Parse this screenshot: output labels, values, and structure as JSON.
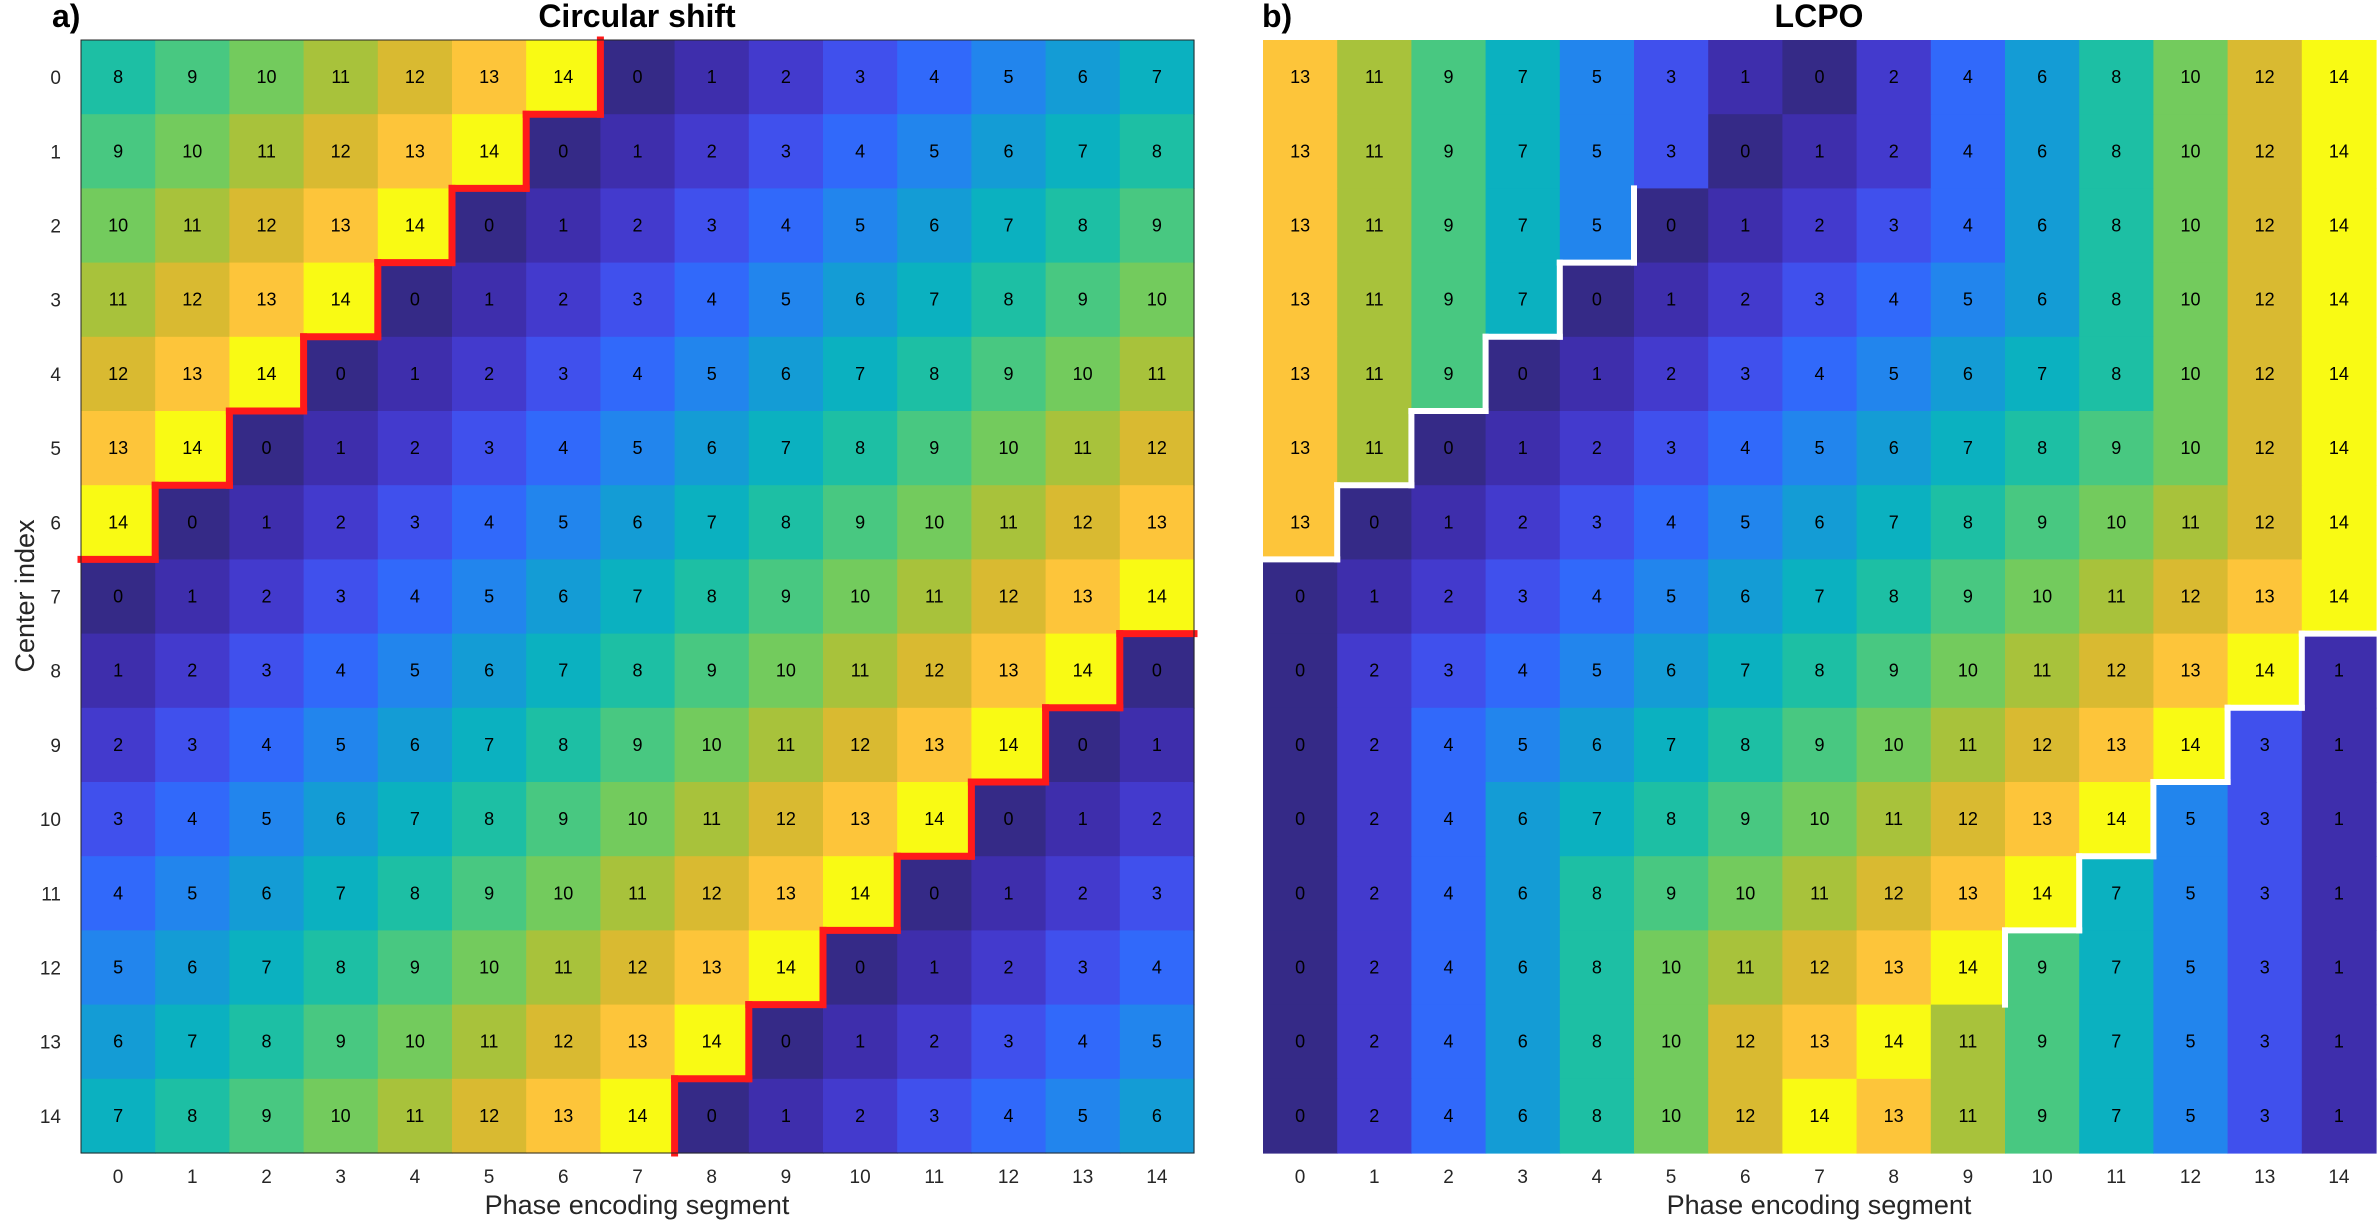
{
  "chart_data": [
    {
      "type": "heatmap",
      "panel_label": "a)",
      "title": "Circular shift",
      "xlabel": "Phase encoding segment",
      "ylabel": "Center index",
      "x_ticks": [
        "0",
        "1",
        "2",
        "3",
        "4",
        "5",
        "6",
        "7",
        "8",
        "9",
        "10",
        "11",
        "12",
        "13",
        "14"
      ],
      "y_ticks": [
        "0",
        "1",
        "2",
        "3",
        "4",
        "5",
        "6",
        "7",
        "8",
        "9",
        "10",
        "11",
        "12",
        "13",
        "14"
      ],
      "colormap": "parula",
      "value_range": [
        0,
        14
      ],
      "boundary_color": "#ff1a1a",
      "values": [
        [
          8,
          9,
          10,
          11,
          12,
          13,
          14,
          0,
          1,
          2,
          3,
          4,
          5,
          6,
          7
        ],
        [
          9,
          10,
          11,
          12,
          13,
          14,
          0,
          1,
          2,
          3,
          4,
          5,
          6,
          7,
          8
        ],
        [
          10,
          11,
          12,
          13,
          14,
          0,
          1,
          2,
          3,
          4,
          5,
          6,
          7,
          8,
          9
        ],
        [
          11,
          12,
          13,
          14,
          0,
          1,
          2,
          3,
          4,
          5,
          6,
          7,
          8,
          9,
          10
        ],
        [
          12,
          13,
          14,
          0,
          1,
          2,
          3,
          4,
          5,
          6,
          7,
          8,
          9,
          10,
          11
        ],
        [
          13,
          14,
          0,
          1,
          2,
          3,
          4,
          5,
          6,
          7,
          8,
          9,
          10,
          11,
          12
        ],
        [
          14,
          0,
          1,
          2,
          3,
          4,
          5,
          6,
          7,
          8,
          9,
          10,
          11,
          12,
          13
        ],
        [
          0,
          1,
          2,
          3,
          4,
          5,
          6,
          7,
          8,
          9,
          10,
          11,
          12,
          13,
          14
        ],
        [
          1,
          2,
          3,
          4,
          5,
          6,
          7,
          8,
          9,
          10,
          11,
          12,
          13,
          14,
          0
        ],
        [
          2,
          3,
          4,
          5,
          6,
          7,
          8,
          9,
          10,
          11,
          12,
          13,
          14,
          0,
          1
        ],
        [
          3,
          4,
          5,
          6,
          7,
          8,
          9,
          10,
          11,
          12,
          13,
          14,
          0,
          1,
          2
        ],
        [
          4,
          5,
          6,
          7,
          8,
          9,
          10,
          11,
          12,
          13,
          14,
          0,
          1,
          2,
          3
        ],
        [
          5,
          6,
          7,
          8,
          9,
          10,
          11,
          12,
          13,
          14,
          0,
          1,
          2,
          3,
          4
        ],
        [
          6,
          7,
          8,
          9,
          10,
          11,
          12,
          13,
          14,
          0,
          1,
          2,
          3,
          4,
          5
        ],
        [
          7,
          8,
          9,
          10,
          11,
          12,
          13,
          14,
          0,
          1,
          2,
          3,
          4,
          5,
          6
        ]
      ]
    },
    {
      "type": "heatmap",
      "panel_label": "b)",
      "title": "LCPO",
      "xlabel": "Phase encoding segment",
      "ylabel": "",
      "x_ticks": [
        "0",
        "1",
        "2",
        "3",
        "4",
        "5",
        "6",
        "7",
        "8",
        "9",
        "10",
        "11",
        "12",
        "13",
        "14"
      ],
      "y_ticks": [],
      "colormap": "parula",
      "value_range": [
        0,
        14
      ],
      "boundary_color": "#ffffff",
      "values": [
        [
          13,
          11,
          9,
          7,
          5,
          3,
          1,
          0,
          2,
          4,
          6,
          8,
          10,
          12,
          14
        ],
        [
          13,
          11,
          9,
          7,
          5,
          3,
          0,
          1,
          2,
          4,
          6,
          8,
          10,
          12,
          14
        ],
        [
          13,
          11,
          9,
          7,
          5,
          0,
          1,
          2,
          3,
          4,
          6,
          8,
          10,
          12,
          14
        ],
        [
          13,
          11,
          9,
          7,
          0,
          1,
          2,
          3,
          4,
          5,
          6,
          8,
          10,
          12,
          14
        ],
        [
          13,
          11,
          9,
          0,
          1,
          2,
          3,
          4,
          5,
          6,
          7,
          8,
          10,
          12,
          14
        ],
        [
          13,
          11,
          0,
          1,
          2,
          3,
          4,
          5,
          6,
          7,
          8,
          9,
          10,
          12,
          14
        ],
        [
          13,
          0,
          1,
          2,
          3,
          4,
          5,
          6,
          7,
          8,
          9,
          10,
          11,
          12,
          14
        ],
        [
          0,
          1,
          2,
          3,
          4,
          5,
          6,
          7,
          8,
          9,
          10,
          11,
          12,
          13,
          14
        ],
        [
          0,
          2,
          3,
          4,
          5,
          6,
          7,
          8,
          9,
          10,
          11,
          12,
          13,
          14,
          1
        ],
        [
          0,
          2,
          4,
          5,
          6,
          7,
          8,
          9,
          10,
          11,
          12,
          13,
          14,
          3,
          1
        ],
        [
          0,
          2,
          4,
          6,
          7,
          8,
          9,
          10,
          11,
          12,
          13,
          14,
          5,
          3,
          1
        ],
        [
          0,
          2,
          4,
          6,
          8,
          9,
          10,
          11,
          12,
          13,
          14,
          7,
          5,
          3,
          1
        ],
        [
          0,
          2,
          4,
          6,
          8,
          10,
          11,
          12,
          13,
          14,
          9,
          7,
          5,
          3,
          1
        ],
        [
          0,
          2,
          4,
          6,
          8,
          10,
          12,
          13,
          14,
          11,
          9,
          7,
          5,
          3,
          1
        ],
        [
          0,
          2,
          4,
          6,
          8,
          10,
          12,
          14,
          13,
          11,
          9,
          7,
          5,
          3,
          1
        ]
      ]
    }
  ]
}
